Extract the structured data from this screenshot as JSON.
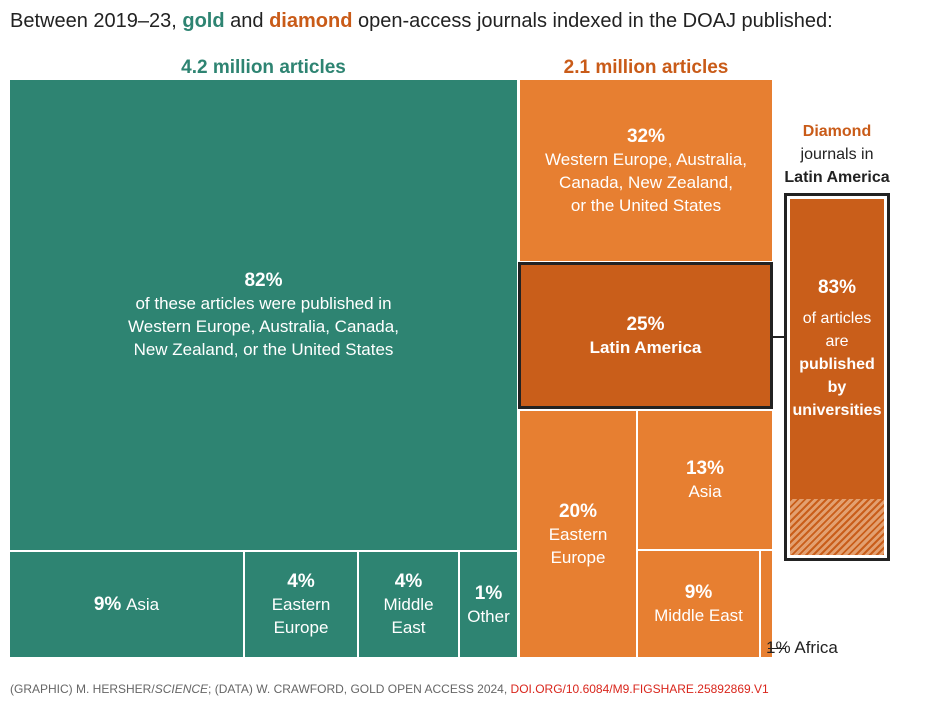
{
  "title": {
    "prefix": "Between 2019–23,",
    "gold": "gold",
    "and": "and",
    "diamond": "diamond",
    "suffix": "open-access journals indexed in the DOAJ published:"
  },
  "colors": {
    "gold": "#2e8472",
    "diamond": "#e77f31",
    "diamond_dark": "#c95e1a",
    "link": "#d9261c"
  },
  "chart_data": {
    "type": "treemap",
    "groups": [
      {
        "name": "gold",
        "total_label": "4.2 million articles",
        "total_millions": 4.2,
        "items": [
          {
            "region": "Western Europe, Australia, Canada, New Zealand, or the United States",
            "percent": 82,
            "pct_label": "82%",
            "lines": [
              "of these articles were published in",
              "Western Europe, Australia, Canada,",
              "New Zealand, or the United States"
            ]
          },
          {
            "region": "Asia",
            "percent": 9,
            "pct_label": "9%",
            "lines": [
              "Asia"
            ]
          },
          {
            "region": "Eastern Europe",
            "percent": 4,
            "pct_label": "4%",
            "lines": [
              "Eastern",
              "Europe"
            ]
          },
          {
            "region": "Middle East",
            "percent": 4,
            "pct_label": "4%",
            "lines": [
              "Middle",
              "East"
            ]
          },
          {
            "region": "Other",
            "percent": 1,
            "pct_label": "1%",
            "lines": [
              "Other"
            ]
          }
        ]
      },
      {
        "name": "diamond",
        "total_label": "2.1 million articles",
        "total_millions": 2.1,
        "items": [
          {
            "region": "Western Europe, Australia, Canada, New Zealand, or the United States",
            "percent": 32,
            "pct_label": "32%",
            "lines": [
              "Western Europe, Australia,",
              "Canada, New Zealand,",
              "or the United States"
            ]
          },
          {
            "region": "Latin America",
            "percent": 25,
            "pct_label": "25%",
            "lines": [
              "Latin America"
            ],
            "highlight": true
          },
          {
            "region": "Eastern Europe",
            "percent": 20,
            "pct_label": "20%",
            "lines": [
              "Eastern",
              "Europe"
            ]
          },
          {
            "region": "Asia",
            "percent": 13,
            "pct_label": "13%",
            "lines": [
              "Asia"
            ]
          },
          {
            "region": "Middle East",
            "percent": 9,
            "pct_label": "9%",
            "lines": [
              "Middle East"
            ]
          },
          {
            "region": "Africa",
            "percent": 1,
            "pct_label": "1%",
            "label": "1% Africa"
          }
        ]
      }
    ],
    "inset": {
      "heading": [
        "Diamond",
        "journals in",
        "Latin America"
      ],
      "percent": 83,
      "pct_label": "83%",
      "lines": [
        "of articles",
        "are",
        "published",
        "by",
        "universities"
      ]
    }
  },
  "footer": {
    "credit": "(GRAPHIC) M. HERSHER/",
    "credit_italic": "SCIENCE",
    "data": "; (DATA) W. CRAWFORD, GOLD OPEN ACCESS 2024,",
    "link": "DOI.ORG/10.6084/M9.FIGSHARE.25892869.V1"
  }
}
